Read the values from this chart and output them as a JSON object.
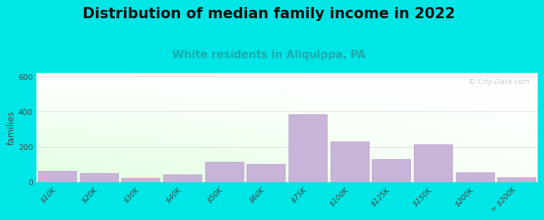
{
  "title": "Distribution of median family income in 2022",
  "subtitle": "White residents in Aliquippa, PA",
  "categories": [
    "$10K",
    "$20K",
    "$30K",
    "$40K",
    "$50K",
    "$60K",
    "$75K",
    "$100K",
    "$125K",
    "$150K",
    "$200K",
    "> $200K"
  ],
  "values": [
    65,
    50,
    25,
    45,
    115,
    105,
    385,
    230,
    130,
    215,
    55,
    30
  ],
  "bar_color": "#c8b4d8",
  "bar_edge_color": "#b89ec8",
  "title_fontsize": 15,
  "subtitle_fontsize": 11,
  "subtitle_color": "#1aacac",
  "ylabel": "families",
  "ylim": [
    0,
    620
  ],
  "yticks": [
    0,
    200,
    400,
    600
  ],
  "bg_outer": "#00e5e5",
  "watermark": "© City-Data.com",
  "grid_color": "#dddddd"
}
